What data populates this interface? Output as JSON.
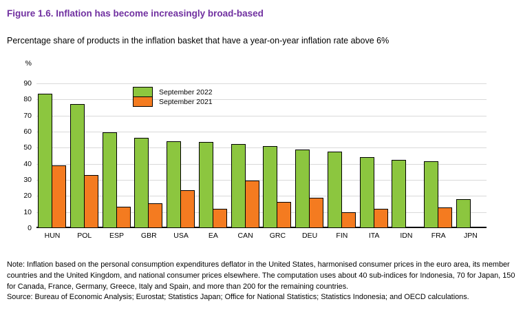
{
  "figure": {
    "title": "Figure 1.6. Inflation has become increasingly broad-based",
    "subtitle": "Percentage share of products in the inflation basket that have a year-on-year inflation rate above 6%",
    "note": "Note: Inflation based on the personal consumption expenditures deflator in the United States, harmonised consumer prices in the euro area, its member countries and the United Kingdom, and national consumer prices elsewhere. The computation uses about 40 sub-indices for Indonesia, 70 for Japan, 150 for Canada, France, Germany, Greece, Italy and Spain, and more than 200 for the remaining countries.",
    "source": "Source: Bureau of Economic Analysis; Eurostat; Statistics Japan; Office for National Statistics; Statistics Indonesia; and OECD calculations."
  },
  "colors": {
    "title_accent": "#7030A0",
    "series_2022": "#8CC63F",
    "series_2021": "#F47B20",
    "gridline": "#D9D9D9",
    "axis": "#000000"
  },
  "chart_data": {
    "type": "bar",
    "title": "Figure 1.6. Inflation has become increasingly broad-based",
    "subtitle": "Percentage share of products in the inflation basket that have a year-on-year inflation rate above 6%",
    "xlabel": "",
    "ylabel": "%",
    "ylim": [
      0,
      90
    ],
    "yticks": [
      0,
      10,
      20,
      30,
      40,
      50,
      60,
      70,
      80,
      90
    ],
    "grid": true,
    "legend_position": "top-left-inside",
    "categories": [
      "HUN",
      "POL",
      "ESP",
      "GBR",
      "USA",
      "EA",
      "CAN",
      "GRC",
      "DEU",
      "FIN",
      "ITA",
      "IDN",
      "FRA",
      "JPN"
    ],
    "series": [
      {
        "name": "September 2022",
        "color": "#8CC63F",
        "values": [
          83.5,
          77,
          59.5,
          56,
          54,
          53.5,
          52.5,
          51,
          49,
          47.5,
          44,
          42.5,
          41.5,
          18
        ]
      },
      {
        "name": "September 2021",
        "color": "#F47B20",
        "values": [
          39,
          33,
          13.5,
          15.5,
          23.5,
          12,
          29.5,
          16.5,
          19,
          10,
          12,
          0,
          13,
          1
        ]
      }
    ]
  }
}
